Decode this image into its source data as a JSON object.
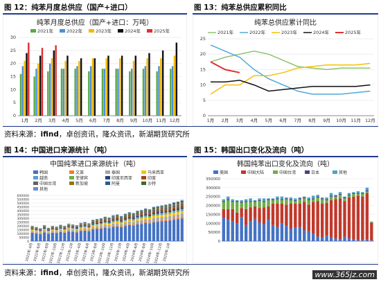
{
  "fig12": {
    "label": "图 12：纯苯月度总供应（国产+进口）",
    "chart_title": "纯苯月度总供应（国产+进口：万吨）"
  },
  "fig13": {
    "label": "图 13：纯苯总供应累积同比",
    "chart_title": "纯苯总供应累计同比"
  },
  "fig14": {
    "label": "图 14：中国进口来源统计（吨）",
    "chart_title": "中国纯苯进口来源统计（吨）"
  },
  "fig15": {
    "label": "图 15：韩国出口变化及流向（吨）",
    "chart_title": "韩国纯苯出口变化及流向（吨）"
  },
  "source_top": {
    "prefix": "资料来源：",
    "ifind": "ifind",
    "rest": "，卓创资讯，隆众资讯，新湖期货研究所"
  },
  "source_bottom": {
    "prefix": "资料来源：",
    "ifind": "ifind",
    "rest": "，卓创资讯，隆众资讯，新湖期货研究所"
  },
  "watermark": "www.365jz.com",
  "chart_data": [
    {
      "type": "bar",
      "title": "纯苯月度总供应（国产+进口：万吨）",
      "categories": [
        "1月",
        "2月",
        "3月",
        "4月",
        "5月",
        "6月",
        "7月",
        "8月",
        "9月",
        "10月",
        "11月",
        "12月"
      ],
      "ylim": [
        0,
        30
      ],
      "yticks": [
        0,
        5,
        10,
        15,
        20,
        25,
        30
      ],
      "series": [
        {
          "name": "2021年",
          "color": "#5aaa46",
          "values": [
            16,
            15,
            17,
            18,
            18,
            17,
            18,
            18,
            17,
            18,
            17,
            18
          ]
        },
        {
          "name": "2022年",
          "color": "#4a90d9",
          "values": [
            19,
            18,
            20,
            18,
            19,
            19,
            18,
            18,
            18,
            19,
            19,
            19
          ]
        },
        {
          "name": "2023年",
          "color": "#f5b800",
          "values": [
            21,
            20,
            22,
            21,
            21,
            22,
            22,
            22,
            21,
            22,
            22,
            23
          ]
        },
        {
          "name": "2024年",
          "color": "#111111",
          "values": [
            24,
            23,
            25,
            23,
            22,
            22,
            23,
            23,
            23,
            24,
            25,
            28
          ]
        },
        {
          "name": "2025年",
          "color": "#e03030",
          "values": [
            28,
            26,
            27,
            null,
            null,
            null,
            null,
            null,
            null,
            null,
            null,
            null
          ]
        }
      ]
    },
    {
      "type": "line",
      "title": "纯苯总供应累计同比",
      "categories": [
        "1月",
        "2月",
        "3月",
        "4月",
        "5月",
        "6月",
        "7月",
        "8月",
        "9月",
        "10月",
        "11月",
        "12月"
      ],
      "ylim": [
        0,
        25
      ],
      "yticks": [
        0,
        5,
        10,
        15,
        20,
        25
      ],
      "series": [
        {
          "name": "2021年",
          "color": "#8dc26f",
          "values": [
            17.5,
            19,
            20,
            21,
            20,
            18,
            16,
            15.5,
            15,
            15.5,
            15.5,
            15.5
          ]
        },
        {
          "name": "2022年",
          "color": "#4fa8d8",
          "values": [
            23,
            21,
            19,
            15,
            12,
            10,
            8,
            7,
            7,
            7,
            7.5,
            8
          ]
        },
        {
          "name": "2023年",
          "color": "#f5c000",
          "values": [
            7,
            10,
            10,
            13,
            13,
            14,
            15.5,
            16,
            16.5,
            16.5,
            16.5,
            17
          ]
        },
        {
          "name": "2024年",
          "color": "#111111",
          "values": [
            11,
            11,
            11.5,
            10,
            8,
            8.5,
            9,
            9.5,
            9.5,
            9.5,
            9.5,
            10
          ]
        },
        {
          "name": "2025年",
          "color": "#e03030",
          "values": [
            17.5,
            15,
            14,
            null,
            null,
            null,
            null,
            null,
            null,
            null,
            null,
            null
          ]
        }
      ]
    },
    {
      "type": "bar",
      "title": "中国纯苯进口来源统计（吨）",
      "ylim": [
        0,
        600000
      ],
      "yticks": [
        0,
        50000,
        100000,
        150000,
        200000,
        250000,
        300000,
        350000,
        400000,
        450000,
        500000,
        550000,
        600000
      ],
      "ytick_labels": [
        "0",
        "50000",
        "100000",
        "150000",
        "200000",
        "250000",
        "300000",
        "350000",
        "400000",
        "450000",
        "500000",
        "550000",
        "600000"
      ],
      "x_tick_labels": [
        "2022年-4月",
        "2022年-6月",
        "2022年-8月",
        "2022年-10月",
        "2022年-12月",
        "2023年-2月",
        "2023年-4月",
        "2023年-6月",
        "2023年-8月",
        "2023年-10月",
        "2023年-12月",
        "2024年-2月",
        "2024年-4月",
        "2024年-6月",
        "2024年-8月",
        "2024年-10月",
        "2024年-12月",
        "2025年-2月"
      ],
      "legend": [
        "韩国",
        "文莱",
        "泰国",
        "马来西亚",
        "越南",
        "菲律宾",
        "印度尼西亚",
        "印度",
        "中国台湾",
        "新加坡",
        "阿曼",
        "沙特",
        "其他"
      ],
      "legend_colors": [
        "#4472c4",
        "#ed7d31",
        "#a5a5a5",
        "#ffc000",
        "#5b9bd5",
        "#70ad47",
        "#264478",
        "#9e480e",
        "#636363",
        "#997300",
        "#255e91",
        "#43682b",
        "#698ed0"
      ],
      "totals": [
        200000,
        185000,
        170000,
        210000,
        175000,
        200000,
        190000,
        215000,
        200000,
        230000,
        220000,
        210000,
        240000,
        250000,
        235000,
        280000,
        290000,
        300000,
        320000,
        310000,
        340000,
        350000,
        330000,
        360000,
        380000,
        370000,
        400000,
        410000,
        430000,
        420000,
        450000,
        460000,
        470000,
        480000,
        490000,
        510000,
        520000,
        540000
      ],
      "korea_share": 0.55
    },
    {
      "type": "bar",
      "title": "韩国纯苯出口变化及流向（吨）",
      "ylim": [
        0,
        350000
      ],
      "yticks": [
        0,
        50000,
        100000,
        150000,
        200000,
        250000,
        300000,
        350000
      ],
      "ytick_labels": [
        "0",
        "50000",
        "100000",
        "150000",
        "200000",
        "250000",
        "300000",
        "350000"
      ],
      "legend": [
        "美国",
        "中国大陆",
        "中国台湾",
        "日本",
        "其他"
      ],
      "legend_colors": [
        "#4472c4",
        "#c0392b",
        "#70ad47",
        "#4b3f8f",
        "#4aa3c8"
      ],
      "series": [
        {
          "name": "美国",
          "values": [
            130000,
            120000,
            110000,
            100000,
            135000,
            90000,
            110000,
            125000,
            105000,
            95000,
            120000,
            90000,
            80000,
            100000,
            85000,
            70000,
            75000,
            80000,
            60000,
            55000,
            40000,
            25000,
            20000,
            30000,
            20000,
            15000,
            10000,
            25000,
            15000,
            10000,
            5000,
            5000,
            10000,
            3000
          ]
        },
        {
          "name": "中国大陆",
          "values": [
            50000,
            60000,
            70000,
            60000,
            50000,
            90000,
            80000,
            70000,
            80000,
            95000,
            75000,
            120000,
            130000,
            110000,
            120000,
            140000,
            135000,
            130000,
            160000,
            150000,
            180000,
            200000,
            190000,
            185000,
            210000,
            220000,
            230000,
            200000,
            230000,
            240000,
            250000,
            245000,
            260000,
            100000
          ]
        },
        {
          "name": "中国台湾",
          "values": [
            40000,
            50000,
            40000,
            60000,
            30000,
            40000,
            30000,
            25000,
            40000,
            30000,
            35000,
            20000,
            25000,
            20000,
            30000,
            20000,
            15000,
            25000,
            20000,
            25000,
            15000,
            20000,
            25000,
            15000,
            20000,
            15000,
            20000,
            15000,
            10000,
            15000,
            10000,
            15000,
            10000,
            5000
          ]
        },
        {
          "name": "日本",
          "values": [
            5000,
            5000,
            5000,
            5000,
            5000,
            5000,
            5000,
            5000,
            5000,
            5000,
            5000,
            5000,
            5000,
            5000,
            5000,
            5000,
            5000,
            5000,
            5000,
            5000,
            5000,
            5000,
            5000,
            5000,
            5000,
            5000,
            5000,
            5000,
            5000,
            5000,
            5000,
            5000,
            5000,
            0
          ]
        },
        {
          "name": "其他",
          "values": [
            10000,
            15000,
            10000,
            5000,
            10000,
            10000,
            15000,
            5000,
            10000,
            15000,
            5000,
            5000,
            10000,
            15000,
            5000,
            10000,
            10000,
            5000,
            5000,
            10000,
            15000,
            10000,
            5000,
            10000,
            15000,
            5000,
            10000,
            5000,
            10000,
            5000,
            10000,
            5000,
            15000,
            2000
          ]
        }
      ]
    }
  ]
}
